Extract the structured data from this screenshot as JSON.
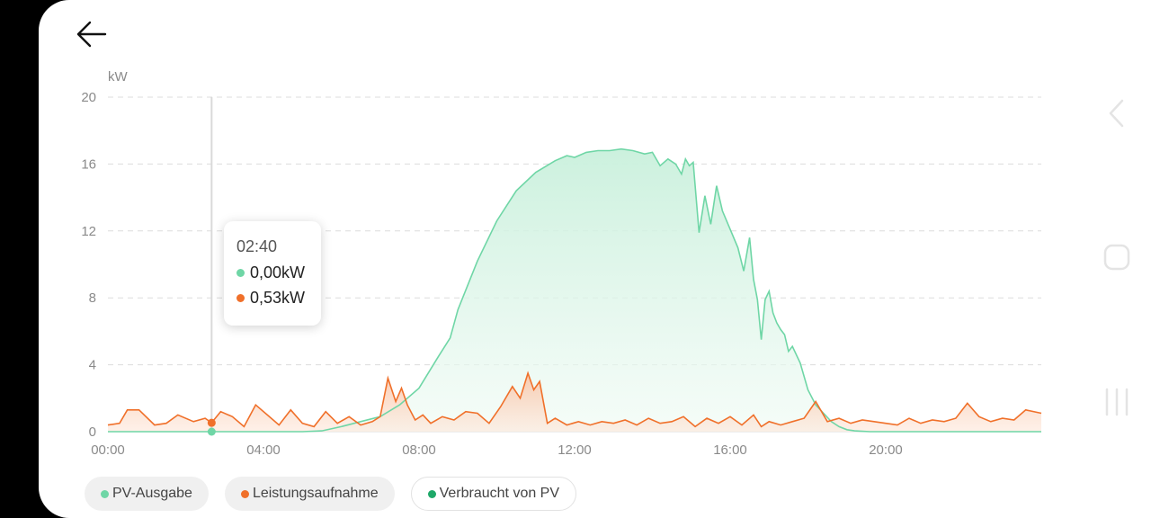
{
  "colors": {
    "pv": "#6fd6a6",
    "pv_fill_top": "#c9f0dc",
    "consumption": "#f0702a",
    "consumption_fill": "#fbd3bc",
    "self_consumed": "#1fa869",
    "grid": "#dcdcdc",
    "cursor": "#d9d9d9"
  },
  "icons": {
    "back": "arrow-left-icon",
    "nav_back": "chevron-left-icon",
    "nav_home": "rounded-square-icon",
    "nav_recent": "three-bars-icon"
  },
  "tooltip": {
    "time": "02:40",
    "rows": [
      {
        "series": "pv",
        "value": "0,00kW"
      },
      {
        "series": "consumption",
        "value": "0,53kW"
      }
    ]
  },
  "legend": [
    {
      "key": "pv",
      "label": "PV-Ausgabe",
      "style": "filled"
    },
    {
      "key": "consumption",
      "label": "Leistungsaufnahme",
      "style": "filled"
    },
    {
      "key": "self_consumed",
      "label": "Verbraucht von PV",
      "style": "outlined"
    }
  ],
  "chart_data": {
    "type": "area",
    "unit": "kW",
    "ylim": [
      0,
      20
    ],
    "yticks": [
      "0",
      "4",
      "8",
      "12",
      "16",
      "20"
    ],
    "xlim": [
      0,
      24
    ],
    "xticks": [
      {
        "h": 0,
        "label": "00:00"
      },
      {
        "h": 4,
        "label": "04:00"
      },
      {
        "h": 8,
        "label": "08:00"
      },
      {
        "h": 12,
        "label": "12:00"
      },
      {
        "h": 16,
        "label": "16:00"
      },
      {
        "h": 20,
        "label": "20:00"
      }
    ],
    "grid": true,
    "cursor_hour": 2.667,
    "series": [
      {
        "name": "PV-Ausgabe",
        "key": "pv",
        "x": [
          0,
          5,
          5.5,
          6,
          6.5,
          7,
          7.5,
          8,
          8.5,
          8.8,
          9,
          9.5,
          10,
          10.5,
          11,
          11.5,
          11.8,
          12,
          12.3,
          12.6,
          12.9,
          13.2,
          13.5,
          13.8,
          14,
          14.2,
          14.4,
          14.6,
          14.75,
          14.85,
          14.95,
          15.05,
          15.2,
          15.35,
          15.5,
          15.65,
          15.8,
          16,
          16.2,
          16.35,
          16.5,
          16.6,
          16.7,
          16.8,
          16.9,
          17,
          17.1,
          17.2,
          17.3,
          17.4,
          17.5,
          17.6,
          17.8,
          18,
          18.2,
          18.4,
          18.6,
          18.8,
          19,
          19.2,
          19.4,
          19.6,
          19.8,
          20,
          24
        ],
        "y": [
          0,
          0,
          0.05,
          0.3,
          0.6,
          0.9,
          1.6,
          2.6,
          4.5,
          5.6,
          7.3,
          10.2,
          12.6,
          14.4,
          15.5,
          16.2,
          16.5,
          16.4,
          16.7,
          16.8,
          16.8,
          16.9,
          16.8,
          16.6,
          16.7,
          15.9,
          16.3,
          16.0,
          15.4,
          16.3,
          15.9,
          16.1,
          11.9,
          14.1,
          12.4,
          14.7,
          13.2,
          12.1,
          11.0,
          9.6,
          11.6,
          9.1,
          7.9,
          5.5,
          7.9,
          8.4,
          7.1,
          6.5,
          6.1,
          5.8,
          4.8,
          5.1,
          4.1,
          2.5,
          1.6,
          1.1,
          0.6,
          0.3,
          0.12,
          0.05,
          0.02,
          0,
          0,
          0,
          0
        ]
      },
      {
        "name": "Leistungsaufnahme",
        "key": "consumption",
        "x": [
          0,
          0.3,
          0.5,
          0.8,
          1.2,
          1.5,
          1.8,
          2.2,
          2.5,
          2.667,
          2.9,
          3.2,
          3.5,
          3.8,
          4.1,
          4.4,
          4.7,
          5,
          5.3,
          5.6,
          5.9,
          6.2,
          6.5,
          6.8,
          7,
          7.2,
          7.4,
          7.55,
          7.7,
          7.9,
          8.1,
          8.3,
          8.6,
          8.9,
          9.2,
          9.5,
          9.8,
          10.1,
          10.4,
          10.6,
          10.8,
          10.95,
          11.1,
          11.3,
          11.5,
          11.8,
          12.1,
          12.4,
          12.7,
          13,
          13.3,
          13.6,
          13.9,
          14.2,
          14.5,
          14.8,
          15.1,
          15.4,
          15.7,
          16,
          16.3,
          16.6,
          16.8,
          17,
          17.3,
          17.6,
          17.9,
          18.2,
          18.5,
          18.8,
          19.1,
          19.4,
          19.7,
          20,
          20.3,
          20.6,
          20.9,
          21.2,
          21.5,
          21.8,
          22.1,
          22.4,
          22.7,
          23,
          23.3,
          23.6,
          24
        ],
        "y": [
          0.4,
          0.5,
          1.3,
          1.3,
          0.4,
          0.5,
          1.0,
          0.6,
          0.8,
          0.53,
          1.2,
          0.9,
          0.3,
          1.6,
          1.0,
          0.4,
          1.3,
          0.5,
          0.3,
          1.2,
          0.5,
          0.9,
          0.4,
          0.6,
          0.9,
          3.2,
          1.8,
          2.6,
          1.6,
          0.7,
          1.0,
          0.5,
          0.9,
          0.7,
          1.2,
          1.1,
          0.5,
          1.5,
          2.7,
          2.0,
          3.5,
          2.5,
          3.0,
          0.5,
          0.8,
          0.4,
          0.6,
          0.4,
          0.6,
          0.5,
          0.7,
          0.4,
          0.8,
          0.5,
          0.6,
          0.9,
          0.3,
          0.8,
          0.5,
          0.9,
          0.4,
          1.0,
          0.3,
          0.6,
          0.4,
          0.6,
          0.8,
          1.8,
          0.6,
          0.8,
          0.5,
          0.7,
          0.6,
          0.5,
          0.4,
          0.8,
          0.5,
          0.7,
          0.6,
          0.8,
          1.7,
          0.9,
          0.6,
          0.8,
          0.7,
          1.3,
          1.1
        ]
      }
    ]
  }
}
